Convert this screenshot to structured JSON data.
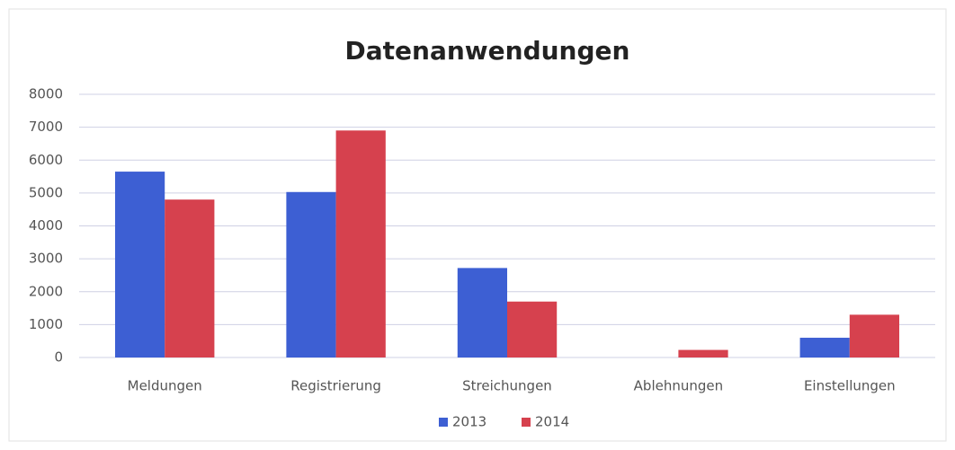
{
  "chart_data": {
    "type": "bar",
    "title": "Datenanwendungen",
    "categories": [
      "Meldungen",
      "Registrierung",
      "Streichungen",
      "Ablehnungen",
      "Einstellungen"
    ],
    "series": [
      {
        "name": "2013",
        "color": "#3d5fd3",
        "values": [
          5650,
          5030,
          2720,
          0,
          600
        ]
      },
      {
        "name": "2014",
        "color": "#d6414e",
        "values": [
          4800,
          6900,
          1700,
          230,
          1300
        ]
      }
    ],
    "ylim": [
      0,
      8000
    ],
    "yticks": [
      0,
      1000,
      2000,
      3000,
      4000,
      5000,
      6000,
      7000,
      8000
    ],
    "grid": true,
    "legend": "bottom"
  }
}
